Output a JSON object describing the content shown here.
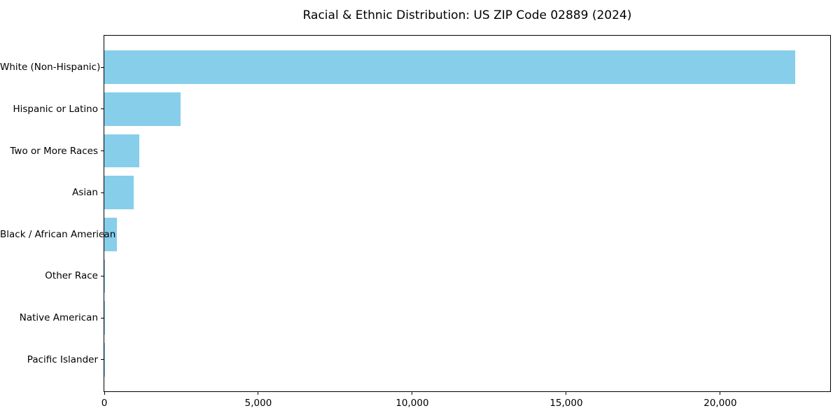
{
  "chart_data": {
    "type": "bar",
    "orientation": "horizontal",
    "title": "Racial & Ethnic Distribution: US ZIP Code 02889 (2024)",
    "categories": [
      "White (Non-Hispanic)",
      "Hispanic or Latino",
      "Two or More Races",
      "Asian",
      "Black / African American",
      "Other Race",
      "Native American",
      "Pacific Islander"
    ],
    "values": [
      22430,
      2480,
      1130,
      950,
      400,
      30,
      12,
      5
    ],
    "xlabel": "",
    "ylabel": "",
    "xlim": [
      0,
      23570
    ],
    "x_ticks": [
      0,
      5000,
      10000,
      15000,
      20000
    ],
    "x_tick_labels": [
      "0",
      "5,000",
      "10,000",
      "15,000",
      "20,000"
    ],
    "grid": false,
    "legend": null,
    "bar_color": "#87CEEB",
    "axis_color": "#000000",
    "text_color": "#000000",
    "background_color": "#ffffff"
  }
}
